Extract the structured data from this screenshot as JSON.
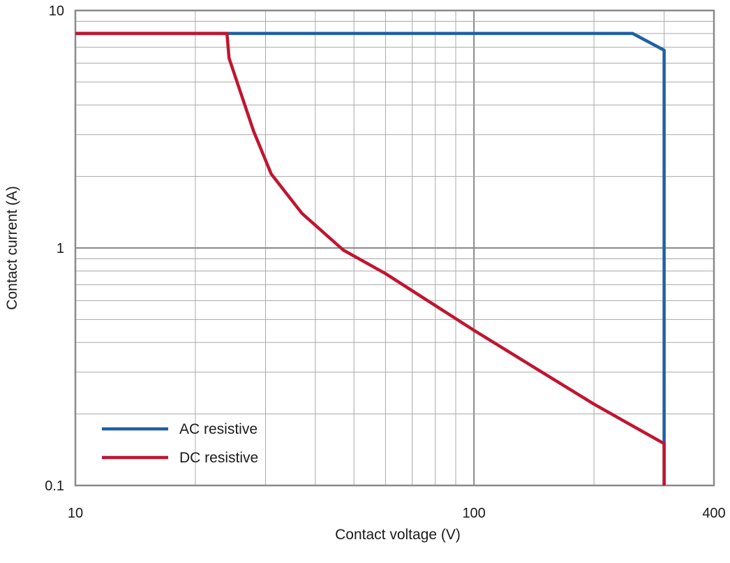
{
  "chart_data": {
    "type": "line",
    "xscale": "log",
    "yscale": "log",
    "xlim": [
      10,
      400
    ],
    "ylim": [
      0.1,
      10
    ],
    "xlabel": "Contact voltage (V)",
    "ylabel": "Contact current (A)",
    "x_ticks": [
      10,
      100,
      400
    ],
    "x_tick_labels": [
      "10",
      "100",
      "400"
    ],
    "y_ticks": [
      0.1,
      1,
      10
    ],
    "y_tick_labels": [
      "0.1",
      "1",
      "10"
    ],
    "grid": true,
    "legend_position": "bottom-left",
    "series": [
      {
        "name": "AC resistive",
        "color": "#1f5fa6",
        "points": [
          [
            10,
            8
          ],
          [
            250,
            8
          ],
          [
            300,
            6.8
          ],
          [
            300,
            0.1
          ]
        ]
      },
      {
        "name": "DC resistive",
        "color": "#c0152f",
        "points": [
          [
            10,
            8
          ],
          [
            24,
            8
          ],
          [
            24.3,
            6.3
          ],
          [
            28,
            3.1
          ],
          [
            31,
            2.05
          ],
          [
            37,
            1.4
          ],
          [
            47,
            0.98
          ],
          [
            60,
            0.78
          ],
          [
            100,
            0.45
          ],
          [
            200,
            0.22
          ],
          [
            300,
            0.15
          ],
          [
            300,
            0.1
          ]
        ]
      }
    ]
  }
}
